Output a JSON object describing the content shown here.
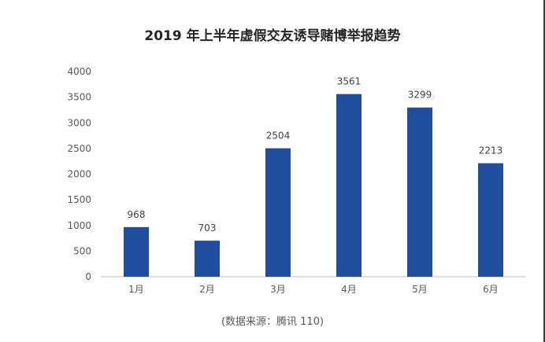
{
  "chart_data": {
    "type": "bar",
    "title": "2019 年上半年虚假交友诱导赌博举报趋势",
    "categories": [
      "1月",
      "2月",
      "3月",
      "4月",
      "5月",
      "6月"
    ],
    "values": [
      968,
      703,
      2504,
      3561,
      3299,
      2213
    ],
    "data_labels": [
      "968",
      "703",
      "2504",
      "3561",
      "3299",
      "2213"
    ],
    "ylim": [
      0,
      4000
    ],
    "yticks": [
      0,
      500,
      1000,
      1500,
      2000,
      2500,
      3000,
      3500,
      4000
    ],
    "ytick_labels": [
      "0",
      "500",
      "1000",
      "1500",
      "2000",
      "2500",
      "3000",
      "3500",
      "4000"
    ],
    "xlabel": "",
    "ylabel": "",
    "grid": false,
    "bar_color": "#1F4E9E",
    "source": "(数据来源：腾讯 110)"
  }
}
